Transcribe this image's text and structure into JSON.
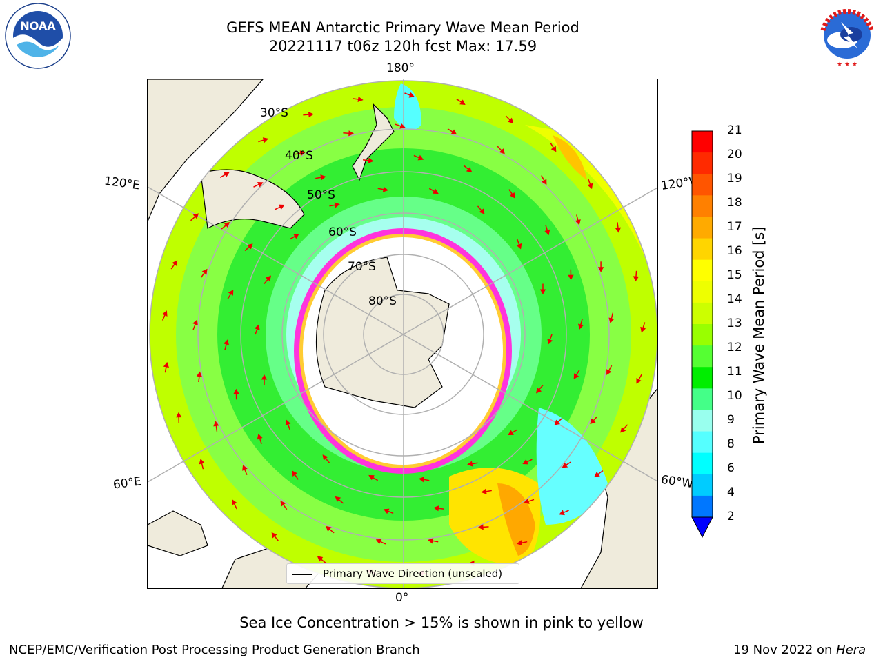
{
  "header": {
    "title_line1": "GEFS MEAN Antarctic Primary Wave Mean Period",
    "title_line2": "20221117 t06z 120h fcst   Max: 17.59"
  },
  "logos": {
    "left": {
      "name": "NOAA",
      "text": "NOAA",
      "ring_text": "NATIONAL OCEANIC AND ATMOSPHERIC ADMINISTRATION · U.S. DEPARTMENT OF COMMERCE"
    },
    "right": {
      "name": "National Weather Service",
      "ring_text": "NATIONAL WEATHER SERVICE"
    }
  },
  "map": {
    "projection": "south polar stereographic",
    "lon_labels": {
      "top": "180°",
      "bottom": "0°",
      "left_upper": "120°E",
      "left_lower": "60°E",
      "right_upper": "120°W",
      "right_lower": "60°W"
    },
    "lat_labels": [
      "30°S",
      "40°S",
      "50°S",
      "60°S",
      "70°S",
      "80°S"
    ],
    "land_color": "#efebdc",
    "sea_ice_colors": [
      "#ff00ff",
      "#ff66cc",
      "#ffcc33"
    ],
    "arrow_color": "#ee0000",
    "legend_label": "Primary Wave Direction (unscaled)"
  },
  "colorbar": {
    "label": "Primary Wave Mean Period [s]",
    "ticks": [
      "21",
      "20",
      "19",
      "18",
      "17",
      "16",
      "15",
      "14",
      "13",
      "12",
      "11",
      "10",
      "9",
      "8",
      "6",
      "4",
      "2"
    ],
    "colors": [
      "#ff0000",
      "#ff2a00",
      "#ff5500",
      "#ff8000",
      "#ffaa00",
      "#ffd500",
      "#ffff00",
      "#eeff00",
      "#ccff00",
      "#99ff00",
      "#55ff33",
      "#00ee00",
      "#44ff88",
      "#99ffee",
      "#55ffff",
      "#00ffff",
      "#00ccff",
      "#0077ff"
    ],
    "extend_color": "#0000ff"
  },
  "footer": {
    "note": "Sea Ice Concentration > 15% is shown in pink to yellow",
    "credit": "NCEP/EMC/Verification Post Processing Product Generation Branch",
    "date": "19 Nov 2022 on",
    "machine": "Hera"
  }
}
